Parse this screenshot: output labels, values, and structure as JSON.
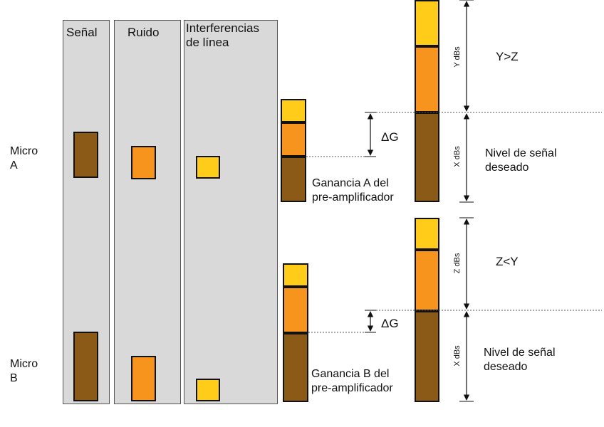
{
  "headers": {
    "signal": "Señal",
    "noise": "Ruido",
    "interference": "Interferencias\nde línea"
  },
  "mics": {
    "a": "Micro\nA",
    "b": "Micro\nB"
  },
  "captions": {
    "gain_a": "Ganancia A del\npre-amplificador",
    "gain_b": "Ganancia B del\npre-amplificador",
    "delta_g": "ΔG",
    "y_dbs": "Y dBs",
    "x_dbs": "X dBs",
    "z_dbs": "Z dBs",
    "y_gt_z": "Y>Z",
    "z_lt_y": "Z<Y",
    "desired_level": "Nivel de señal\ndeseado"
  },
  "colors": {
    "signal": "#8b5a16",
    "noise": "#f7941d",
    "interference": "#ffcc1a",
    "panel": "#d9d9d9"
  }
}
